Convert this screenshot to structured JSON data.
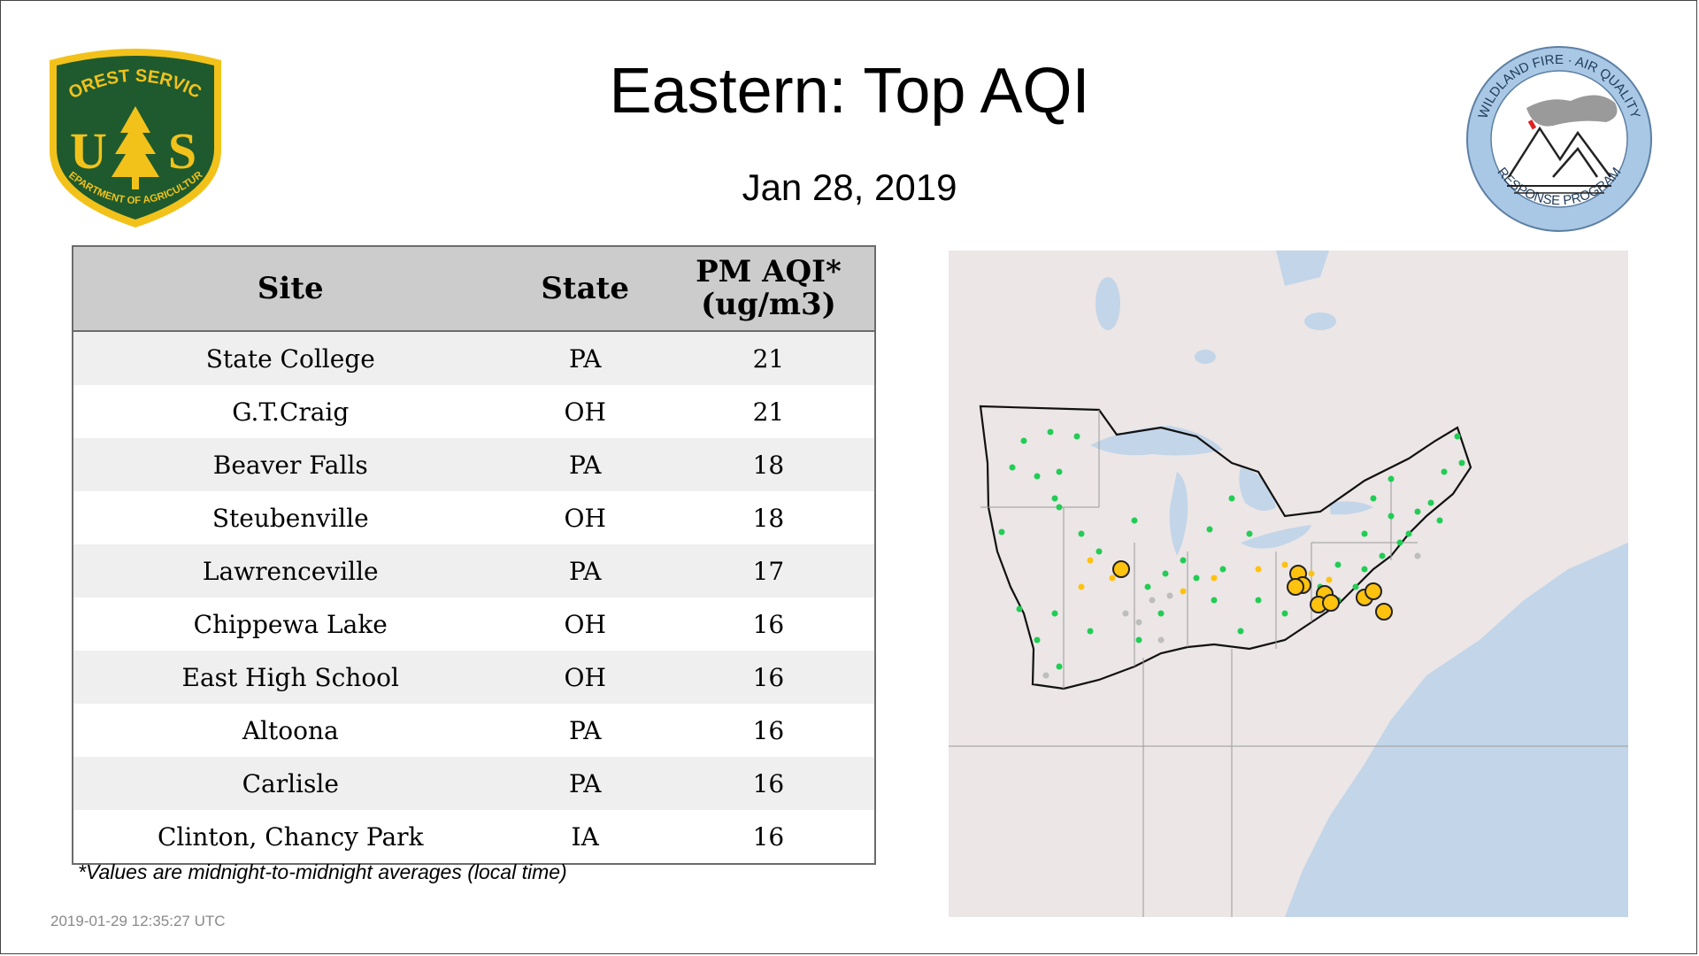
{
  "title": "Eastern: Top AQI",
  "date": "Jan 28, 2019",
  "logos": {
    "forest_service": {
      "top_text": "FOREST SERVICE",
      "bottom_text": "DEPARTMENT OF AGRICULTURE",
      "left_letter": "U",
      "right_letter": "S",
      "colors": {
        "shield": "#1e5a2e",
        "gold": "#f2c21b"
      }
    },
    "wildland_fire": {
      "top_text": "WILDLAND FIRE · AIR QUALITY",
      "bottom_text": "RESPONSE PROGRAM",
      "colors": {
        "ring": "#a9c8e6",
        "smoke": "#9a9a9a",
        "flame": "#e02020"
      }
    }
  },
  "table": {
    "headers": {
      "site": "Site",
      "state": "State",
      "aqi_line1": "PM AQI*",
      "aqi_line2": "(ug/m3)"
    },
    "rows": [
      {
        "site": "State College",
        "state": "PA",
        "aqi": "21"
      },
      {
        "site": "G.T.Craig",
        "state": "OH",
        "aqi": "21"
      },
      {
        "site": "Beaver Falls",
        "state": "PA",
        "aqi": "18"
      },
      {
        "site": "Steubenville",
        "state": "OH",
        "aqi": "18"
      },
      {
        "site": "Lawrenceville",
        "state": "PA",
        "aqi": "17"
      },
      {
        "site": "Chippewa Lake",
        "state": "OH",
        "aqi": "16"
      },
      {
        "site": "East High School",
        "state": "OH",
        "aqi": "16"
      },
      {
        "site": "Altoona",
        "state": "PA",
        "aqi": "16"
      },
      {
        "site": "Carlisle",
        "state": "PA",
        "aqi": "16"
      },
      {
        "site": "Clinton, Chancy Park",
        "state": "IA",
        "aqi": "16"
      }
    ]
  },
  "footnote": "*Values are midnight-to-midnight averages (local time)",
  "timestamp": "2019-01-29 12:35:27 UTC",
  "map": {
    "colors": {
      "land": "#ece6e6",
      "water": "#c3d5e8",
      "good": "#22cc55",
      "moderate": "#ffc20e",
      "no_data": "#bdbdbd",
      "top_site_ring": "#222222"
    }
  }
}
